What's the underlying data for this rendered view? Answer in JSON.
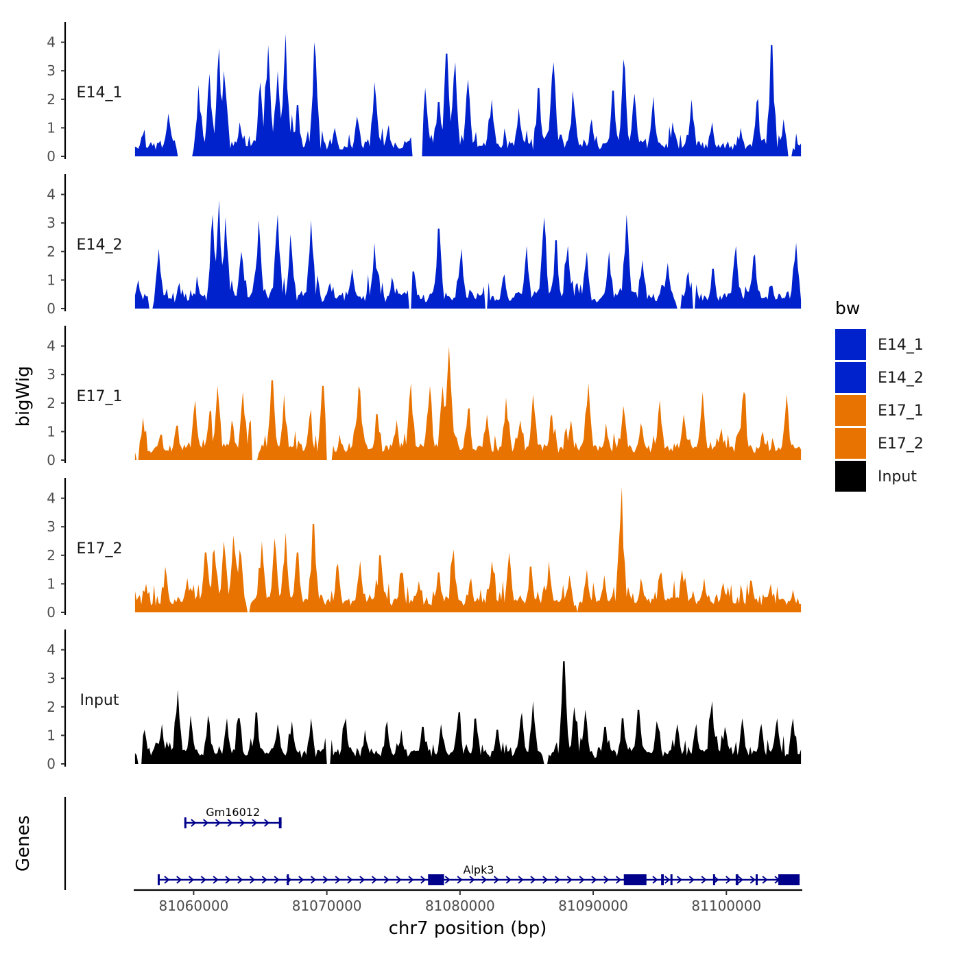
{
  "chart_data": {
    "type": "area",
    "title": "",
    "xlabel": "chr7 position (bp)",
    "ylabel": "bigWig",
    "genes_axis_label": "Genes",
    "xlim": [
      81055500,
      81105700
    ],
    "x_ticks": [
      81060000,
      81070000,
      81080000,
      81090000,
      81100000
    ],
    "x_tick_labels": [
      "81060000",
      "81070000",
      "81080000",
      "81090000",
      "81100000"
    ],
    "ylim": [
      0,
      4.5
    ],
    "y_ticks": [
      0,
      1,
      2,
      3,
      4
    ],
    "y_tick_labels": [
      "0",
      "1",
      "2",
      "3",
      "4"
    ],
    "grid": false,
    "legend": {
      "title": "bw",
      "position": "right",
      "entries": [
        {
          "label": "E14_1",
          "color": "#0022CC"
        },
        {
          "label": "E14_2",
          "color": "#0022CC"
        },
        {
          "label": "E17_1",
          "color": "#E87300"
        },
        {
          "label": "E17_2",
          "color": "#E87300"
        },
        {
          "label": "Input",
          "color": "#000000"
        }
      ]
    },
    "series": [
      {
        "name": "E14_1",
        "color": "#0022CC",
        "x_start": 81055600,
        "x_end": 81105600,
        "peaks": [
          [
            81058100,
            1.5
          ],
          [
            81059300,
            1.1
          ],
          [
            81060400,
            2.5
          ],
          [
            81061200,
            2.9
          ],
          [
            81061900,
            3.8
          ],
          [
            81062300,
            3.0
          ],
          [
            81063500,
            1.2
          ],
          [
            81065000,
            2.6
          ],
          [
            81065600,
            3.9
          ],
          [
            81066300,
            3.0
          ],
          [
            81066900,
            4.3
          ],
          [
            81067800,
            1.8
          ],
          [
            81069100,
            4.0
          ],
          [
            81070600,
            1.0
          ],
          [
            81072300,
            1.4
          ],
          [
            81073600,
            2.6
          ],
          [
            81074600,
            1.1
          ],
          [
            81077400,
            2.4
          ],
          [
            81078400,
            1.9
          ],
          [
            81079000,
            3.6
          ],
          [
            81079600,
            3.3
          ],
          [
            81080600,
            2.7
          ],
          [
            81082400,
            2.0
          ],
          [
            81084400,
            1.7
          ],
          [
            81085900,
            2.4
          ],
          [
            81087000,
            3.3
          ],
          [
            81088500,
            2.3
          ],
          [
            81089900,
            1.3
          ],
          [
            81091500,
            2.3
          ],
          [
            81092300,
            3.4
          ],
          [
            81093100,
            2.2
          ],
          [
            81094500,
            2.1
          ],
          [
            81096000,
            1.2
          ],
          [
            81097400,
            2.0
          ],
          [
            81098900,
            1.2
          ],
          [
            81101100,
            1.0
          ],
          [
            81102300,
            1.9
          ],
          [
            81103400,
            3.9
          ],
          [
            81104300,
            1.3
          ]
        ],
        "gaps": [
          [
            81058800,
            81059900
          ],
          [
            81076400,
            81077200
          ],
          [
            81104600,
            81105000
          ]
        ]
      },
      {
        "name": "E14_2",
        "color": "#0022CC",
        "x_start": 81055600,
        "x_end": 81105600,
        "peaks": [
          [
            81055800,
            1.0
          ],
          [
            81057400,
            2.1
          ],
          [
            81058900,
            0.9
          ],
          [
            81061400,
            3.3
          ],
          [
            81061900,
            3.8
          ],
          [
            81062400,
            3.2
          ],
          [
            81063600,
            2.0
          ],
          [
            81064900,
            3.1
          ],
          [
            81066300,
            3.3
          ],
          [
            81067300,
            2.6
          ],
          [
            81068800,
            3.1
          ],
          [
            81070200,
            0.9
          ],
          [
            81071900,
            1.4
          ],
          [
            81073600,
            2.3
          ],
          [
            81074900,
            1.1
          ],
          [
            81076500,
            1.3
          ],
          [
            81078400,
            2.8
          ],
          [
            81080100,
            2.1
          ],
          [
            81081900,
            1.1
          ],
          [
            81083300,
            1.2
          ],
          [
            81085000,
            2.2
          ],
          [
            81086300,
            3.2
          ],
          [
            81087200,
            2.4
          ],
          [
            81088100,
            2.2
          ],
          [
            81089500,
            2.0
          ],
          [
            81091200,
            2.0
          ],
          [
            81092500,
            3.3
          ],
          [
            81093700,
            1.7
          ],
          [
            81095600,
            1.6
          ],
          [
            81097100,
            1.3
          ],
          [
            81099000,
            1.4
          ],
          [
            81100700,
            2.2
          ],
          [
            81102100,
            1.9
          ],
          [
            81103400,
            0.8
          ],
          [
            81105200,
            2.3
          ]
        ],
        "gaps": [
          [
            81056600,
            81057000
          ],
          [
            81076100,
            81076400
          ],
          [
            81081800,
            81082100
          ],
          [
            81096200,
            81096600
          ],
          [
            81097400,
            81097700
          ]
        ]
      },
      {
        "name": "E17_1",
        "color": "#E87300",
        "x_start": 81055600,
        "x_end": 81105600,
        "peaks": [
          [
            81056200,
            1.5
          ],
          [
            81057500,
            0.9
          ],
          [
            81058700,
            1.2
          ],
          [
            81060100,
            2.1
          ],
          [
            81061200,
            1.7
          ],
          [
            81061800,
            2.6
          ],
          [
            81062900,
            1.4
          ],
          [
            81063700,
            2.4
          ],
          [
            81064300,
            1.4
          ],
          [
            81065900,
            2.8
          ],
          [
            81066800,
            2.3
          ],
          [
            81068700,
            1.5
          ],
          [
            81069700,
            2.6
          ],
          [
            81071000,
            0.9
          ],
          [
            81072400,
            2.6
          ],
          [
            81073800,
            1.6
          ],
          [
            81075200,
            1.4
          ],
          [
            81076300,
            2.7
          ],
          [
            81077700,
            2.6
          ],
          [
            81078700,
            2.6
          ],
          [
            81079200,
            4.0
          ],
          [
            81080600,
            1.8
          ],
          [
            81082000,
            1.6
          ],
          [
            81083500,
            2.2
          ],
          [
            81084500,
            1.4
          ],
          [
            81085500,
            2.3
          ],
          [
            81086900,
            1.6
          ],
          [
            81088300,
            1.4
          ],
          [
            81089600,
            2.7
          ],
          [
            81091000,
            1.3
          ],
          [
            81092300,
            1.9
          ],
          [
            81093600,
            1.3
          ],
          [
            81095000,
            2.1
          ],
          [
            81096800,
            1.6
          ],
          [
            81098200,
            2.4
          ],
          [
            81099600,
            1.1
          ],
          [
            81101300,
            2.4
          ],
          [
            81102700,
            1.0
          ],
          [
            81104500,
            2.3
          ]
        ],
        "gaps": [
          [
            81055700,
            81055900
          ],
          [
            81064400,
            81064800
          ],
          [
            81070000,
            81070400
          ]
        ]
      },
      {
        "name": "E17_2",
        "color": "#E87300",
        "x_start": 81055600,
        "x_end": 81105600,
        "peaks": [
          [
            81056400,
            1.0
          ],
          [
            81057900,
            1.6
          ],
          [
            81059500,
            1.2
          ],
          [
            81060900,
            2.1
          ],
          [
            81061600,
            2.2
          ],
          [
            81062300,
            2.5
          ],
          [
            81063000,
            2.7
          ],
          [
            81063500,
            2.2
          ],
          [
            81065100,
            2.5
          ],
          [
            81066100,
            2.6
          ],
          [
            81066900,
            2.8
          ],
          [
            81067800,
            2.1
          ],
          [
            81069000,
            3.1
          ],
          [
            81070800,
            1.7
          ],
          [
            81072500,
            1.8
          ],
          [
            81074000,
            2.0
          ],
          [
            81075600,
            1.4
          ],
          [
            81076900,
            1.1
          ],
          [
            81078400,
            1.4
          ],
          [
            81079500,
            2.2
          ],
          [
            81080800,
            1.2
          ],
          [
            81082400,
            1.8
          ],
          [
            81083700,
            2.1
          ],
          [
            81085300,
            1.6
          ],
          [
            81086700,
            1.8
          ],
          [
            81088200,
            1.3
          ],
          [
            81089500,
            1.5
          ],
          [
            81090800,
            1.3
          ],
          [
            81092100,
            4.4
          ],
          [
            81093600,
            1.2
          ],
          [
            81095100,
            1.4
          ],
          [
            81096700,
            1.5
          ],
          [
            81098300,
            1.2
          ],
          [
            81100100,
            0.9
          ],
          [
            81101900,
            1.1
          ],
          [
            81103300,
            1.0
          ],
          [
            81105000,
            0.8
          ]
        ],
        "gaps": [
          [
            81064000,
            81064200
          ],
          [
            81088700,
            81088900
          ]
        ]
      },
      {
        "name": "Input",
        "color": "#000000",
        "x_start": 81055600,
        "x_end": 81105600,
        "peaks": [
          [
            81056300,
            1.2
          ],
          [
            81057600,
            1.4
          ],
          [
            81058800,
            2.6
          ],
          [
            81059800,
            1.7
          ],
          [
            81061100,
            1.7
          ],
          [
            81062500,
            1.6
          ],
          [
            81063400,
            1.6
          ],
          [
            81064700,
            1.8
          ],
          [
            81066300,
            1.4
          ],
          [
            81067400,
            1.5
          ],
          [
            81068800,
            1.6
          ],
          [
            81070100,
            2.1
          ],
          [
            81071400,
            1.6
          ],
          [
            81072900,
            1.2
          ],
          [
            81074500,
            1.5
          ],
          [
            81075600,
            1.2
          ],
          [
            81077200,
            1.3
          ],
          [
            81078600,
            1.4
          ],
          [
            81079900,
            1.8
          ],
          [
            81081200,
            1.6
          ],
          [
            81082800,
            1.2
          ],
          [
            81084600,
            1.8
          ],
          [
            81085500,
            2.2
          ],
          [
            81087800,
            3.6
          ],
          [
            81088600,
            2.0
          ],
          [
            81089400,
            1.9
          ],
          [
            81090900,
            1.3
          ],
          [
            81092200,
            1.6
          ],
          [
            81093400,
            1.9
          ],
          [
            81094800,
            1.5
          ],
          [
            81096300,
            1.4
          ],
          [
            81097700,
            1.4
          ],
          [
            81098900,
            2.2
          ],
          [
            81099900,
            1.3
          ],
          [
            81101200,
            1.6
          ],
          [
            81102600,
            1.4
          ],
          [
            81103800,
            1.6
          ],
          [
            81105000,
            1.6
          ]
        ],
        "gaps": [
          [
            81055800,
            81056100
          ],
          [
            81070000,
            81070300
          ],
          [
            81086200,
            81086600
          ]
        ]
      }
    ],
    "genes": [
      {
        "name": "Gm16012",
        "start": 81059300,
        "end": 81066600,
        "strand": "+",
        "row": 1,
        "exons": [
          [
            81059300,
            81059450
          ],
          [
            81066400,
            81066600
          ]
        ]
      },
      {
        "name": "Alpk3",
        "start": 81057300,
        "end": 81105500,
        "strand": "+",
        "row": 2,
        "exons": [
          [
            81057300,
            81057450
          ],
          [
            81067000,
            81067100
          ],
          [
            81077600,
            81078800
          ],
          [
            81092300,
            81094000
          ],
          [
            81095100,
            81095300
          ],
          [
            81095800,
            81095950
          ],
          [
            81099000,
            81099100
          ],
          [
            81100700,
            81100900
          ],
          [
            81102200,
            81102300
          ],
          [
            81103900,
            81105500
          ]
        ]
      }
    ]
  }
}
